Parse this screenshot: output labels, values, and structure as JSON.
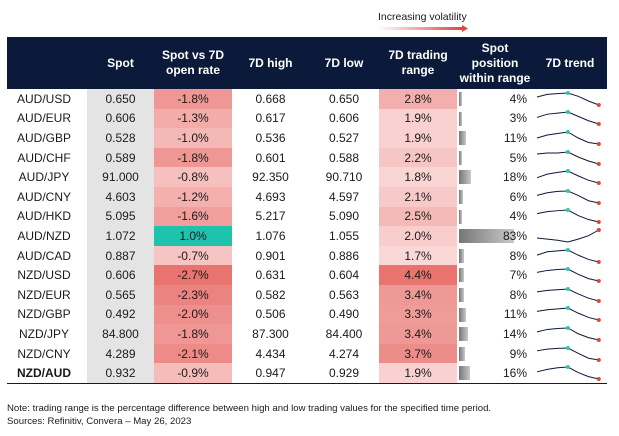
{
  "legend_note": "Increasing volatility",
  "columns": [
    "",
    "Spot",
    "Spot vs 7D open rate",
    "7D high",
    "7D low",
    "7D trading range",
    "Spot position within range",
    "7D trend"
  ],
  "columns_display": [
    "",
    "Spot",
    "Spot vs 7D|open rate",
    "7D high",
    "7D low",
    "7D trading|range",
    "Spot|position|within range",
    "7D trend"
  ],
  "colors": {
    "header_bg": "#0b1a3a",
    "negative_strong": "#e8736f",
    "negative_light": "#fbe0df",
    "positive": "#1fc3ad",
    "trend_line": "#0b1a3a",
    "trend_high": "#2ec5b2",
    "trend_last": "#e0453f"
  },
  "chart_data": {
    "type": "table",
    "rows": [
      {
        "pair": "AUD/USD",
        "spot": "0.650",
        "vs_open": "-1.8%",
        "high": "0.668",
        "low": "0.650",
        "range": "2.8%",
        "position": "4%",
        "pos_value": 4,
        "vs_value": -1.8,
        "range_value": 2.8,
        "trend": [
          0.662,
          0.666,
          0.667,
          0.668,
          0.663,
          0.656,
          0.65
        ]
      },
      {
        "pair": "AUD/EUR",
        "spot": "0.606",
        "vs_open": "-1.3%",
        "high": "0.617",
        "low": "0.606",
        "range": "1.9%",
        "position": "3%",
        "pos_value": 3,
        "vs_value": -1.3,
        "range_value": 1.9,
        "trend": [
          0.612,
          0.615,
          0.616,
          0.617,
          0.613,
          0.609,
          0.606
        ]
      },
      {
        "pair": "AUD/GBP",
        "spot": "0.528",
        "vs_open": "-1.0%",
        "high": "0.536",
        "low": "0.527",
        "range": "1.9%",
        "position": "11%",
        "pos_value": 11,
        "vs_value": -1.0,
        "range_value": 1.9,
        "trend": [
          0.532,
          0.534,
          0.535,
          0.536,
          0.532,
          0.529,
          0.528
        ]
      },
      {
        "pair": "AUD/CHF",
        "spot": "0.589",
        "vs_open": "-1.8%",
        "high": "0.601",
        "low": "0.588",
        "range": "2.2%",
        "position": "5%",
        "pos_value": 5,
        "vs_value": -1.8,
        "range_value": 2.2,
        "trend": [
          0.599,
          0.6,
          0.6,
          0.601,
          0.596,
          0.592,
          0.589
        ]
      },
      {
        "pair": "AUD/JPY",
        "spot": "91.000",
        "vs_open": "-0.8%",
        "high": "92.350",
        "low": "90.710",
        "range": "1.8%",
        "position": "18%",
        "pos_value": 18,
        "vs_value": -0.8,
        "range_value": 1.8,
        "trend": [
          91.6,
          92.0,
          92.2,
          92.35,
          91.8,
          91.3,
          91.0
        ]
      },
      {
        "pair": "AUD/CNY",
        "spot": "4.603",
        "vs_open": "-1.2%",
        "high": "4.693",
        "low": "4.597",
        "range": "2.1%",
        "position": "6%",
        "pos_value": 6,
        "vs_value": -1.2,
        "range_value": 2.1,
        "trend": [
          4.66,
          4.68,
          4.69,
          4.693,
          4.66,
          4.62,
          4.603
        ]
      },
      {
        "pair": "AUD/HKD",
        "spot": "5.095",
        "vs_open": "-1.6%",
        "high": "5.217",
        "low": "5.090",
        "range": "2.5%",
        "position": "4%",
        "pos_value": 4,
        "vs_value": -1.6,
        "range_value": 2.5,
        "trend": [
          5.18,
          5.2,
          5.21,
          5.217,
          5.16,
          5.12,
          5.095
        ]
      },
      {
        "pair": "AUD/NZD",
        "spot": "1.072",
        "vs_open": "1.0%",
        "high": "1.076",
        "low": "1.055",
        "range": "2.0%",
        "position": "83%",
        "pos_value": 83,
        "vs_value": 1.0,
        "range_value": 2.0,
        "trend": [
          1.062,
          1.06,
          1.058,
          1.055,
          1.06,
          1.066,
          1.076
        ]
      },
      {
        "pair": "AUD/CAD",
        "spot": "0.887",
        "vs_open": "-0.7%",
        "high": "0.901",
        "low": "0.886",
        "range": "1.7%",
        "position": "8%",
        "pos_value": 8,
        "vs_value": -0.7,
        "range_value": 1.7,
        "trend": [
          0.895,
          0.899,
          0.9,
          0.901,
          0.895,
          0.89,
          0.887
        ]
      },
      {
        "pair": "NZD/USD",
        "spot": "0.606",
        "vs_open": "-2.7%",
        "high": "0.631",
        "low": "0.604",
        "range": "4.4%",
        "position": "7%",
        "pos_value": 7,
        "vs_value": -2.7,
        "range_value": 4.4,
        "trend": [
          0.624,
          0.628,
          0.63,
          0.631,
          0.62,
          0.611,
          0.606
        ]
      },
      {
        "pair": "NZD/EUR",
        "spot": "0.565",
        "vs_open": "-2.3%",
        "high": "0.582",
        "low": "0.563",
        "range": "3.4%",
        "position": "8%",
        "pos_value": 8,
        "vs_value": -2.3,
        "range_value": 3.4,
        "trend": [
          0.578,
          0.58,
          0.581,
          0.582,
          0.575,
          0.569,
          0.565
        ]
      },
      {
        "pair": "NZD/GBP",
        "spot": "0.492",
        "vs_open": "-2.0%",
        "high": "0.506",
        "low": "0.490",
        "range": "3.3%",
        "position": "11%",
        "pos_value": 11,
        "vs_value": -2.0,
        "range_value": 3.3,
        "trend": [
          0.502,
          0.504,
          0.505,
          0.506,
          0.5,
          0.495,
          0.492
        ]
      },
      {
        "pair": "NZD/JPY",
        "spot": "84.800",
        "vs_open": "-1.8%",
        "high": "87.300",
        "low": "84.400",
        "range": "3.4%",
        "position": "14%",
        "pos_value": 14,
        "vs_value": -1.8,
        "range_value": 3.4,
        "trend": [
          86.5,
          87.0,
          87.2,
          87.3,
          86.1,
          85.3,
          84.8
        ]
      },
      {
        "pair": "NZD/CNY",
        "spot": "4.289",
        "vs_open": "-2.1%",
        "high": "4.434",
        "low": "4.274",
        "range": "3.7%",
        "position": "9%",
        "pos_value": 9,
        "vs_value": -2.1,
        "range_value": 3.7,
        "trend": [
          4.4,
          4.42,
          4.43,
          4.434,
          4.37,
          4.31,
          4.289
        ]
      },
      {
        "pair": "NZD/AUD",
        "spot": "0.932",
        "vs_open": "-0.9%",
        "high": "0.947",
        "low": "0.929",
        "range": "1.9%",
        "position": "16%",
        "pos_value": 16,
        "vs_value": -0.9,
        "range_value": 1.9,
        "trend": [
          0.941,
          0.944,
          0.946,
          0.947,
          0.94,
          0.935,
          0.932
        ]
      }
    ]
  },
  "footnote": "Note: trading range is the percentage difference between high and low trading values for the specified time period.",
  "sources": "Sources: Refinitiv, Convera – May 26, 2023"
}
